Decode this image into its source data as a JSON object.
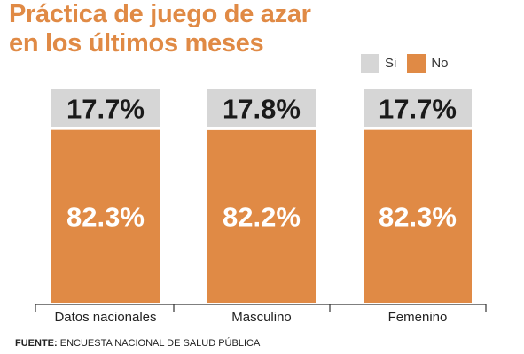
{
  "title": [
    "Práctica de juego de azar",
    "en los últimos meses"
  ],
  "legend": [
    {
      "label": "Si",
      "color": "#d6d6d6"
    },
    {
      "label": "No",
      "color": "#e08a45"
    }
  ],
  "source": {
    "label": "FUENTE:",
    "text": "ENCUESTA NACIONAL DE SALUD PÚBLICA"
  },
  "chart_data": {
    "type": "bar",
    "stacked": true,
    "percent": true,
    "categories": [
      "Datos nacionales",
      "Masculino",
      "Femenino"
    ],
    "series": [
      {
        "name": "No",
        "color": "#e08a45",
        "values": [
          82.3,
          82.2,
          82.3
        ],
        "labels": [
          "82.3%",
          "82.2%",
          "82.3%"
        ]
      },
      {
        "name": "Si",
        "color": "#d6d6d6",
        "values": [
          17.7,
          17.8,
          17.7
        ],
        "labels": [
          "17.7%",
          "17.8%",
          "17.7%"
        ]
      }
    ],
    "ylim": [
      0,
      100
    ],
    "legend_position": "top-right",
    "grid": false
  }
}
